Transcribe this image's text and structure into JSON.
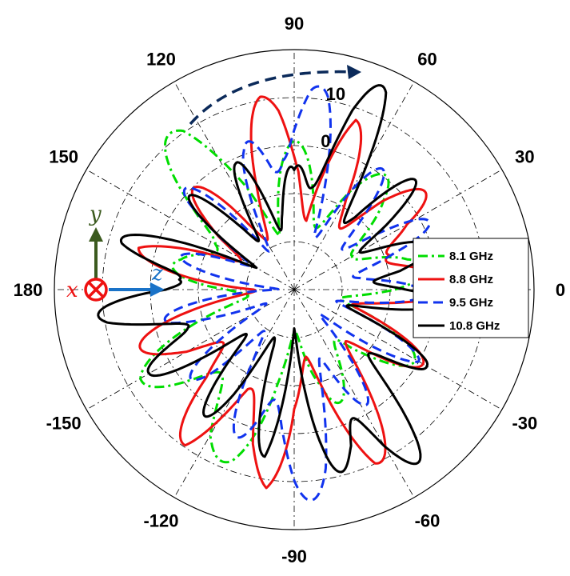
{
  "chart_data": {
    "type": "polar-line",
    "angle_ticks": [
      "0",
      "30",
      "60",
      "90",
      "120",
      "150",
      "180",
      "-150",
      "-120",
      "-90",
      "-60",
      "-30"
    ],
    "angle_tick_values": [
      0,
      30,
      60,
      90,
      120,
      150,
      180,
      -150,
      -120,
      -90,
      -60,
      -30
    ],
    "radial_ticks": [
      "0",
      "10"
    ],
    "radial_tick_values": [
      0,
      10
    ],
    "rlim": [
      -30,
      20
    ],
    "grid": true,
    "legend_position": "right",
    "series": [
      {
        "name": "8.1 GHz",
        "color": "#00dd00",
        "dash": "dash-dot",
        "theta": [
          0,
          15,
          30,
          45,
          60,
          75,
          90,
          105,
          115,
          125,
          140,
          150,
          165,
          180,
          195,
          210,
          225,
          240,
          250,
          260,
          270,
          285,
          300,
          315,
          330,
          345,
          360
        ],
        "r": [
          -5,
          -8,
          -3,
          -6,
          -2,
          -4,
          -4,
          -8,
          4,
          8,
          3,
          2,
          -8,
          -12,
          -4,
          2,
          5,
          9,
          3,
          -6,
          -8,
          -12,
          -6,
          -2,
          -6,
          -8,
          -5
        ]
      },
      {
        "name": "8.8 GHz",
        "color": "#ee1111",
        "dash": "solid",
        "theta": [
          0,
          10,
          20,
          30,
          45,
          60,
          70,
          80,
          88,
          95,
          100,
          110,
          125,
          145,
          155,
          165,
          180,
          195,
          210,
          225,
          235,
          245,
          255,
          262,
          270,
          280,
          295,
          315,
          330,
          345,
          360
        ],
        "r": [
          3,
          -2,
          4,
          -3,
          2,
          -4,
          3,
          -6,
          6,
          8,
          6,
          -2,
          -8,
          -2,
          -6,
          -1,
          -10,
          -3,
          4,
          -2,
          6,
          4,
          10,
          8,
          -6,
          -3,
          6,
          -2,
          -4,
          -5,
          3
        ]
      },
      {
        "name": "9.5 GHz",
        "color": "#1133ee",
        "dash": "dash",
        "theta": [
          0,
          10,
          20,
          30,
          45,
          60,
          70,
          80,
          85,
          90,
          95,
          100,
          110,
          125,
          140,
          155,
          170,
          180,
          195,
          210,
          225,
          240,
          255,
          265,
          270,
          280,
          290,
          300,
          315,
          330,
          345,
          360
        ],
        "r": [
          -8,
          -4,
          -6,
          -2,
          -5,
          -3,
          -6,
          6,
          10,
          11,
          10,
          3,
          -4,
          -8,
          -3,
          -8,
          -12,
          -14,
          -6,
          -12,
          -4,
          -8,
          3,
          9,
          10,
          8,
          -2,
          -6,
          -10,
          -5,
          -8,
          -8
        ]
      },
      {
        "name": "10.8 GHz",
        "color": "#000000",
        "dash": "solid",
        "theta": [
          0,
          10,
          20,
          35,
          50,
          60,
          65,
          72,
          80,
          90,
          100,
          115,
          130,
          150,
          165,
          175,
          180,
          190,
          200,
          210,
          225,
          240,
          250,
          260,
          270,
          280,
          290,
          300,
          310,
          320,
          330,
          345,
          360
        ],
        "r": [
          -4,
          2,
          -6,
          1,
          -3,
          6,
          11,
          12,
          4,
          -10,
          -4,
          -6,
          -4,
          -8,
          4,
          7,
          2,
          8,
          6,
          0,
          -4,
          -2,
          -8,
          1,
          -9,
          0,
          12,
          13,
          7,
          3,
          -3,
          -6,
          -4
        ]
      }
    ],
    "annotations": {
      "axes_letters": [
        "y",
        "z",
        "x"
      ]
    }
  }
}
